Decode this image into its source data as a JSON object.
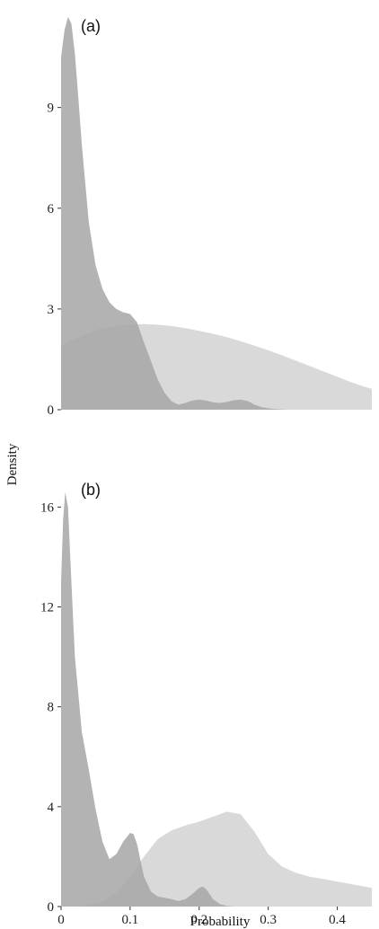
{
  "chart_data": {
    "type": "area",
    "xlabel": "Probability",
    "ylabel": "Density",
    "colors": {
      "dark": "#a6a6a6",
      "light": "#d9d9d9",
      "text": "#222222",
      "tick": "#333333"
    },
    "panels": [
      {
        "label": "(a)",
        "xlim": [
          0,
          0.45
        ],
        "ylim": [
          0,
          11.8
        ],
        "yticks": [
          0,
          3,
          6,
          9
        ],
        "ytick_labels": [
          "0",
          "3",
          "6",
          "9"
        ],
        "xticks": [],
        "xtick_labels": [],
        "series": [
          {
            "style": "light",
            "x": [
              0,
              0.02,
              0.04,
              0.06,
              0.08,
              0.1,
              0.12,
              0.14,
              0.16,
              0.18,
              0.2,
              0.22,
              0.24,
              0.26,
              0.28,
              0.3,
              0.32,
              0.34,
              0.36,
              0.38,
              0.4,
              0.42,
              0.44,
              0.45
            ],
            "y": [
              1.9,
              2.1,
              2.3,
              2.42,
              2.5,
              2.54,
              2.55,
              2.53,
              2.49,
              2.43,
              2.35,
              2.26,
              2.16,
              2.04,
              1.91,
              1.77,
              1.62,
              1.46,
              1.3,
              1.14,
              0.98,
              0.82,
              0.68,
              0.62
            ]
          },
          {
            "style": "dark",
            "x": [
              0,
              0.005,
              0.01,
              0.015,
              0.02,
              0.025,
              0.03,
              0.04,
              0.05,
              0.06,
              0.07,
              0.08,
              0.09,
              0.1,
              0.11,
              0.12,
              0.13,
              0.14,
              0.15,
              0.16,
              0.17,
              0.18,
              0.19,
              0.2,
              0.21,
              0.22,
              0.23,
              0.24,
              0.25,
              0.26,
              0.27,
              0.28,
              0.29,
              0.3,
              0.31,
              0.32,
              0.33,
              0.34
            ],
            "y": [
              10.5,
              11.3,
              11.7,
              11.5,
              10.6,
              9.3,
              7.9,
              5.6,
              4.3,
              3.6,
              3.2,
              3.0,
              2.9,
              2.85,
              2.6,
              2.0,
              1.45,
              0.9,
              0.5,
              0.25,
              0.15,
              0.2,
              0.27,
              0.3,
              0.27,
              0.22,
              0.2,
              0.23,
              0.28,
              0.3,
              0.26,
              0.15,
              0.08,
              0.04,
              0.02,
              0.01,
              0.0,
              0.0
            ]
          }
        ]
      },
      {
        "label": "(b)",
        "xlim": [
          0,
          0.45
        ],
        "ylim": [
          0,
          17.2
        ],
        "yticks": [
          0,
          4,
          8,
          12,
          16
        ],
        "ytick_labels": [
          "0",
          "4",
          "8",
          "12",
          "16"
        ],
        "xticks": [
          0,
          0.1,
          0.2,
          0.3,
          0.4
        ],
        "xtick_labels": [
          "0",
          "0.1",
          "0.2",
          "0.3",
          "0.4"
        ],
        "series": [
          {
            "style": "light",
            "x": [
              0.02,
              0.04,
              0.06,
              0.08,
              0.1,
              0.12,
              0.14,
              0.16,
              0.18,
              0.2,
              0.22,
              0.24,
              0.26,
              0.28,
              0.3,
              0.32,
              0.34,
              0.36,
              0.38,
              0.4,
              0.42,
              0.45
            ],
            "y": [
              0.0,
              0.05,
              0.2,
              0.55,
              1.2,
              2.0,
              2.7,
              3.05,
              3.25,
              3.4,
              3.6,
              3.8,
              3.7,
              3.0,
              2.1,
              1.6,
              1.35,
              1.2,
              1.1,
              1.0,
              0.9,
              0.75
            ]
          },
          {
            "style": "dark",
            "x": [
              0,
              0.003,
              0.006,
              0.01,
              0.015,
              0.02,
              0.03,
              0.04,
              0.05,
              0.06,
              0.07,
              0.08,
              0.09,
              0.1,
              0.105,
              0.11,
              0.12,
              0.13,
              0.14,
              0.15,
              0.16,
              0.17,
              0.18,
              0.19,
              0.2,
              0.205,
              0.21,
              0.22,
              0.23,
              0.24,
              0.25
            ],
            "y": [
              13.0,
              15.5,
              16.6,
              16.0,
              13.0,
              10.0,
              7.0,
              5.5,
              3.9,
              2.6,
              1.9,
              2.1,
              2.6,
              2.95,
              2.9,
              2.5,
              1.2,
              0.6,
              0.4,
              0.35,
              0.3,
              0.22,
              0.3,
              0.5,
              0.75,
              0.8,
              0.7,
              0.3,
              0.1,
              0.03,
              0.0
            ]
          }
        ]
      }
    ]
  }
}
